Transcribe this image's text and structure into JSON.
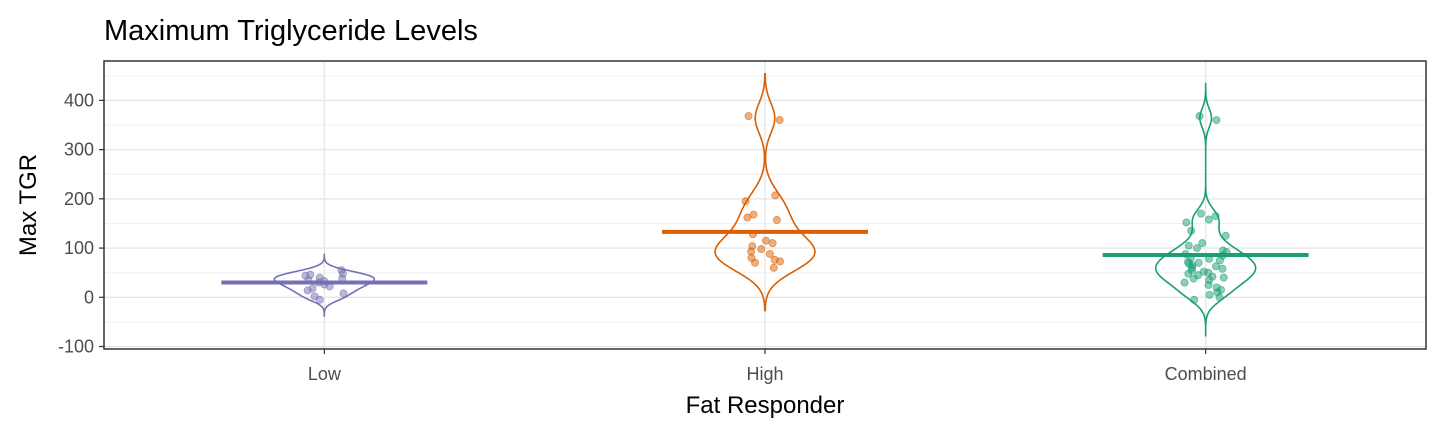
{
  "chart_data": {
    "type": "violin",
    "title": "Maximum Triglyceride Levels",
    "xlabel": "Fat Responder",
    "ylabel": "Max TGR",
    "ylim": [
      -105,
      480
    ],
    "yticks": [
      -100,
      0,
      100,
      200,
      300,
      400
    ],
    "grid": true,
    "legend": "none",
    "categories": [
      "Low",
      "High",
      "Combined"
    ],
    "series": [
      {
        "category": "Low",
        "color": "#7570b3",
        "mean": 30,
        "violin_range": [
          -38,
          87
        ],
        "points": [
          55,
          48,
          44,
          40,
          38,
          35,
          30,
          26,
          22,
          18,
          14,
          8,
          -5,
          46,
          33,
          2
        ]
      },
      {
        "category": "High",
        "color": "#d95f02",
        "mean": 133,
        "violin_range": [
          -27,
          454
        ],
        "points": [
          368,
          360,
          207,
          195,
          168,
          162,
          157,
          128,
          115,
          110,
          104,
          98,
          93,
          88,
          80,
          76,
          73,
          70,
          60
        ]
      },
      {
        "category": "Combined",
        "color": "#1b9e77",
        "mean": 86,
        "violin_range": [
          -78,
          434
        ],
        "points": [
          368,
          360,
          170,
          165,
          158,
          152,
          135,
          125,
          110,
          105,
          100,
          95,
          92,
          88,
          85,
          80,
          78,
          75,
          72,
          70,
          68,
          65,
          63,
          60,
          58,
          55,
          52,
          50,
          48,
          45,
          42,
          40,
          38,
          35,
          30,
          25,
          20,
          15,
          10,
          5,
          0,
          -5
        ]
      }
    ]
  }
}
